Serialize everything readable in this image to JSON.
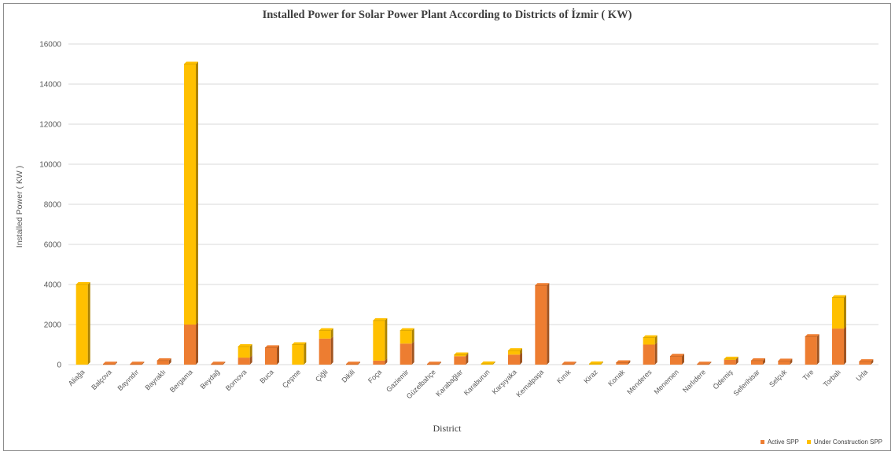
{
  "chart_data": {
    "type": "bar",
    "stacked": true,
    "three_d": true,
    "title": "Installed Power for Solar Power Plant According to Districts of İzmir ( KW)",
    "xlabel": "District",
    "ylabel": "Installed Power ( KW )",
    "ylim": [
      0,
      16000
    ],
    "yticks": [
      0,
      2000,
      4000,
      6000,
      8000,
      10000,
      12000,
      14000,
      16000
    ],
    "grid": true,
    "legend_position": "bottom-right",
    "categories": [
      "Aliağa",
      "Balçova",
      "Bayındır",
      "Bayraklı",
      "Bergama",
      "Beydağ",
      "Bornova",
      "Buca",
      "Çeşme",
      "Çiğli",
      "Dikili",
      "Foça",
      "Gaziemir",
      "Güzelbahçe",
      "Karabağlar",
      "Karaburun",
      "Karşıyaka",
      "Kemalpaşa",
      "Kınık",
      "Kiraz",
      "Konak",
      "Menderes",
      "Menemen",
      "Narlıdere",
      "Ödemiş",
      "Seferihisar",
      "Selçuk",
      "Tire",
      "Torbalı",
      "Urla"
    ],
    "series": [
      {
        "name": "Active SPP",
        "color": "#ED7D31",
        "values": [
          0,
          30,
          30,
          200,
          2000,
          30,
          350,
          850,
          0,
          1300,
          30,
          200,
          1050,
          30,
          420,
          0,
          500,
          3950,
          30,
          0,
          100,
          1000,
          420,
          30,
          250,
          200,
          180,
          1400,
          1800,
          150
        ]
      },
      {
        "name": "Under Construction SPP",
        "color": "#FFC000",
        "values": [
          4000,
          0,
          0,
          0,
          13000,
          0,
          550,
          0,
          1000,
          400,
          0,
          2000,
          650,
          0,
          70,
          40,
          200,
          0,
          0,
          40,
          0,
          350,
          0,
          0,
          30,
          0,
          0,
          0,
          1550,
          0
        ]
      }
    ]
  }
}
